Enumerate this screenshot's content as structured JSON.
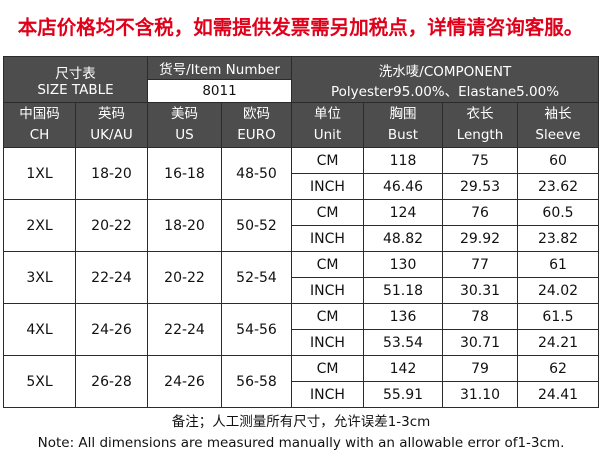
{
  "notice": "本店价格均不含税，如需提供发票需另加税点，详情请咨询客服。",
  "header": {
    "size_table_cn": "尺寸表",
    "size_table_en": "SIZE TABLE",
    "item_number_label": "货号/Item Number",
    "item_number_value": "8011",
    "component_label": "洗水唛/COMPONENT",
    "component_value": "Polyester95.00%、Elastane5.00%"
  },
  "columns": [
    {
      "cn": "中国码",
      "en": "CH"
    },
    {
      "cn": "英码",
      "en": "UK/AU"
    },
    {
      "cn": "美码",
      "en": "US"
    },
    {
      "cn": "欧码",
      "en": "EURO"
    },
    {
      "cn": "单位",
      "en": "Unit"
    },
    {
      "cn": "胸围",
      "en": "Bust"
    },
    {
      "cn": "衣长",
      "en": "Length"
    },
    {
      "cn": "袖长",
      "en": "Sleeve"
    }
  ],
  "rows": [
    {
      "ch": "1XL",
      "uk": "18-20",
      "us": "16-18",
      "euro": "48-50",
      "cm": {
        "unit": "CM",
        "bust": "118",
        "length": "75",
        "sleeve": "60"
      },
      "inch": {
        "unit": "INCH",
        "bust": "46.46",
        "length": "29.53",
        "sleeve": "23.62"
      }
    },
    {
      "ch": "2XL",
      "uk": "20-22",
      "us": "18-20",
      "euro": "50-52",
      "cm": {
        "unit": "CM",
        "bust": "124",
        "length": "76",
        "sleeve": "60.5"
      },
      "inch": {
        "unit": "INCH",
        "bust": "48.82",
        "length": "29.92",
        "sleeve": "23.82"
      }
    },
    {
      "ch": "3XL",
      "uk": "22-24",
      "us": "20-22",
      "euro": "52-54",
      "cm": {
        "unit": "CM",
        "bust": "130",
        "length": "77",
        "sleeve": "61"
      },
      "inch": {
        "unit": "INCH",
        "bust": "51.18",
        "length": "30.31",
        "sleeve": "24.02"
      }
    },
    {
      "ch": "4XL",
      "uk": "24-26",
      "us": "22-24",
      "euro": "54-56",
      "cm": {
        "unit": "CM",
        "bust": "136",
        "length": "78",
        "sleeve": "61.5"
      },
      "inch": {
        "unit": "INCH",
        "bust": "53.54",
        "length": "30.71",
        "sleeve": "24.21"
      }
    },
    {
      "ch": "5XL",
      "uk": "26-28",
      "us": "24-26",
      "euro": "56-58",
      "cm": {
        "unit": "CM",
        "bust": "142",
        "length": "79",
        "sleeve": "62"
      },
      "inch": {
        "unit": "INCH",
        "bust": "55.91",
        "length": "31.10",
        "sleeve": "24.41"
      }
    }
  ],
  "note_cn": "备注；人工测量所有尺寸，允许误差1-3cm",
  "note_en": "Note: All dimensions are measured manually with an allowable error of1-3cm."
}
